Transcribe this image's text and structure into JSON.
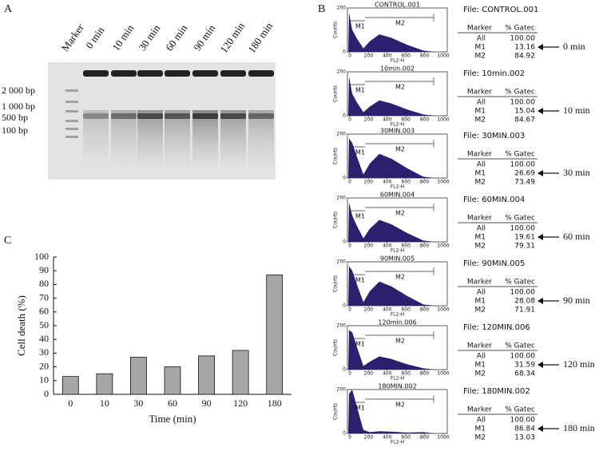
{
  "labels": {
    "a": "A",
    "b": "B",
    "c": "C"
  },
  "gel": {
    "marker": "Marker",
    "lanes": [
      "0 min",
      "10 min",
      "30 min",
      "60 min",
      "90 min",
      "120 min",
      "180 min"
    ],
    "sizes": [
      "2 000 bp",
      "1 000 bp",
      "500 bp",
      "100 bp"
    ]
  },
  "flow": {
    "y_axis": "Counts",
    "x_axis": "FL2-H",
    "xticks": [
      0,
      200,
      400,
      600,
      800,
      1000
    ],
    "yticks": [
      0,
      200
    ],
    "gates": [
      "M1",
      "M2"
    ],
    "header": [
      "Marker",
      "% Gatec"
    ],
    "plots": [
      {
        "title": "CONTROL.001",
        "file": "File: CONTROL.001",
        "rows": [
          [
            "All",
            "100.00"
          ],
          [
            "M1",
            "13.16"
          ],
          [
            "M2",
            "84.92"
          ]
        ],
        "time": "0 min"
      },
      {
        "title": "10min.002",
        "file": "File: 10min.002",
        "rows": [
          [
            "All",
            "100.00"
          ],
          [
            "M1",
            "15.04"
          ],
          [
            "M2",
            "84.67"
          ]
        ],
        "time": "10 min"
      },
      {
        "title": "30MIN.003",
        "file": "File: 30MIN.003",
        "rows": [
          [
            "All",
            "100.00"
          ],
          [
            "M1",
            "26.69"
          ],
          [
            "M2",
            "73.49"
          ]
        ],
        "time": "30 min"
      },
      {
        "title": "60MIN.004",
        "file": "File: 60MIN.004",
        "rows": [
          [
            "All",
            "100.00"
          ],
          [
            "M1",
            "19.61"
          ],
          [
            "M2",
            "79.31"
          ]
        ],
        "time": "60 min"
      },
      {
        "title": "90MIN.005",
        "file": "File: 90MIN.005",
        "rows": [
          [
            "All",
            "100.00"
          ],
          [
            "M1",
            "28.08"
          ],
          [
            "M2",
            "71.91"
          ]
        ],
        "time": "90 min"
      },
      {
        "title": "120min.006",
        "file": "File: 120MIN.006",
        "rows": [
          [
            "All",
            "100.00"
          ],
          [
            "M1",
            "31.59"
          ],
          [
            "M2",
            "68.34"
          ]
        ],
        "time": "120 min"
      },
      {
        "title": "180MIN.002",
        "file": "File: 180MIN.002",
        "rows": [
          [
            "All",
            "100.00"
          ],
          [
            "M1",
            "86.84"
          ],
          [
            "M2",
            "13.03"
          ]
        ],
        "time": "180 min"
      }
    ]
  },
  "chart_data": {
    "type": "bar",
    "x_label": "Time (min)",
    "y_label": "Cell death (%)",
    "categories": [
      "0",
      "10",
      "30",
      "60",
      "90",
      "120",
      "180"
    ],
    "values": [
      13,
      15,
      27,
      20,
      28,
      32,
      87
    ],
    "color": "#a6a6a6",
    "ylim": [
      0,
      100
    ],
    "yticks": [
      0,
      10,
      20,
      30,
      40,
      50,
      60,
      70,
      80,
      90,
      100
    ]
  }
}
